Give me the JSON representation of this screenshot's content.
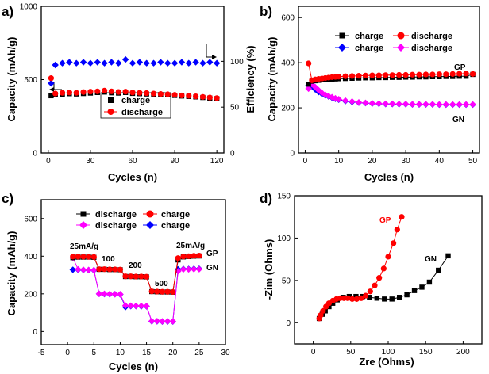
{
  "chart_data": [
    {
      "type": "scatter",
      "panel_label": "a)",
      "xlabel": "Cycles (n)",
      "ylabel": "Capacity (mAh/g)",
      "y2label": "Efficiency (%)",
      "xlim": [
        -5,
        125
      ],
      "ylim": [
        0,
        1000
      ],
      "y2lim": [
        0,
        160
      ],
      "xticks": [
        "0",
        "30",
        "60",
        "90",
        "120"
      ],
      "yticks": [
        "0",
        "500",
        "1000"
      ],
      "y2ticks": [
        "0",
        "50",
        "100"
      ],
      "legend": [
        "charge",
        "discharge"
      ],
      "legend_position": "center-right",
      "series": [
        {
          "name": "charge",
          "axis": "left",
          "color": "#000000",
          "marker": "square",
          "x": [
            2,
            5,
            10,
            15,
            20,
            25,
            30,
            35,
            40,
            45,
            50,
            55,
            60,
            65,
            70,
            75,
            80,
            85,
            90,
            95,
            100,
            105,
            110,
            115,
            120
          ],
          "y": [
            390,
            398,
            400,
            404,
            402,
            405,
            408,
            412,
            415,
            410,
            408,
            412,
            406,
            404,
            402,
            400,
            398,
            396,
            392,
            388,
            385,
            382,
            378,
            374,
            370
          ]
        },
        {
          "name": "discharge",
          "axis": "left",
          "color": "#ff0000",
          "marker": "circle",
          "x": [
            2,
            5,
            10,
            15,
            20,
            25,
            30,
            35,
            40,
            45,
            50,
            55,
            60,
            65,
            70,
            75,
            80,
            85,
            90,
            95,
            100,
            105,
            110,
            115,
            120
          ],
          "y": [
            510,
            405,
            410,
            412,
            410,
            415,
            418,
            420,
            425,
            420,
            416,
            418,
            412,
            410,
            408,
            405,
            402,
            400,
            396,
            392,
            390,
            386,
            382,
            378,
            374
          ]
        },
        {
          "name": "efficiency",
          "axis": "right",
          "color": "#0000ff",
          "marker": "diamond",
          "x": [
            2,
            5,
            10,
            15,
            20,
            25,
            30,
            35,
            40,
            45,
            50,
            55,
            60,
            65,
            70,
            75,
            80,
            85,
            90,
            95,
            100,
            105,
            110,
            115,
            120
          ],
          "y": [
            76,
            96,
            98,
            99,
            98,
            99,
            98,
            99,
            98,
            99,
            98,
            102,
            98,
            99,
            98,
            98,
            99,
            98,
            98,
            99,
            98,
            99,
            98,
            99,
            98
          ]
        }
      ]
    },
    {
      "type": "scatter",
      "panel_label": "b)",
      "xlabel": "Cycles (n)",
      "ylabel": "Capacity (mAh/g)",
      "xlim": [
        -2,
        52
      ],
      "ylim": [
        0,
        650
      ],
      "xticks": [
        "0",
        "10",
        "20",
        "30",
        "40",
        "50"
      ],
      "yticks": [
        "0",
        "200",
        "400",
        "600"
      ],
      "legend": [
        "charge",
        "discharge",
        "charge",
        "discharge"
      ],
      "legend_position": "top",
      "annotations": [
        "GP",
        "GN"
      ],
      "series": [
        {
          "name": "charge",
          "group": "GP",
          "color": "#000000",
          "marker": "square",
          "x": [
            1,
            2,
            3,
            4,
            5,
            6,
            7,
            8,
            9,
            10,
            12,
            14,
            16,
            18,
            20,
            22,
            24,
            26,
            28,
            30,
            32,
            34,
            36,
            38,
            40,
            42,
            44,
            46,
            48,
            50
          ],
          "y": [
            305,
            318,
            320,
            322,
            324,
            325,
            326,
            327,
            328,
            329,
            330,
            331,
            332,
            333,
            333,
            334,
            334,
            335,
            335,
            336,
            336,
            337,
            337,
            338,
            338,
            339,
            339,
            340,
            340,
            348
          ]
        },
        {
          "name": "discharge",
          "group": "GP",
          "color": "#ff0000",
          "marker": "circle",
          "x": [
            1,
            2,
            3,
            4,
            5,
            6,
            7,
            8,
            9,
            10,
            12,
            14,
            16,
            18,
            20,
            22,
            24,
            26,
            28,
            30,
            32,
            34,
            36,
            38,
            40,
            42,
            44,
            46,
            48,
            50
          ],
          "y": [
            397,
            322,
            326,
            328,
            330,
            332,
            334,
            336,
            337,
            338,
            340,
            341,
            342,
            343,
            344,
            344,
            345,
            345,
            346,
            346,
            347,
            347,
            348,
            348,
            349,
            349,
            350,
            351,
            352,
            350
          ]
        },
        {
          "name": "charge",
          "group": "GN",
          "color": "#0000ff",
          "marker": "diamond",
          "x": [
            1,
            2,
            3,
            4,
            5,
            6,
            7,
            8,
            9,
            10,
            12,
            14,
            16,
            18,
            20,
            22,
            24,
            26,
            28,
            30,
            32,
            34,
            36,
            38,
            40,
            42,
            44,
            46,
            48,
            50
          ],
          "y": [
            300,
            296,
            282,
            270,
            262,
            255,
            250,
            245,
            240,
            236,
            230,
            226,
            223,
            221,
            219,
            218,
            217,
            217,
            216,
            216,
            215,
            215,
            215,
            215,
            214,
            214,
            214,
            214,
            214,
            214
          ]
        },
        {
          "name": "discharge",
          "group": "GN",
          "color": "#ff00ff",
          "marker": "diamond",
          "x": [
            1,
            2,
            3,
            4,
            5,
            6,
            7,
            8,
            9,
            10,
            12,
            14,
            16,
            18,
            20,
            22,
            24,
            26,
            28,
            30,
            32,
            34,
            36,
            38,
            40,
            42,
            44,
            46,
            48,
            50
          ],
          "y": [
            285,
            305,
            292,
            278,
            266,
            258,
            252,
            247,
            242,
            238,
            232,
            228,
            224,
            222,
            220,
            219,
            218,
            218,
            217,
            217,
            216,
            216,
            216,
            216,
            215,
            215,
            215,
            215,
            215,
            215
          ]
        }
      ]
    },
    {
      "type": "scatter",
      "panel_label": "c)",
      "xlabel": "Cycles (n)",
      "ylabel": "Capacity (mAh/g)",
      "xlim": [
        -5,
        30
      ],
      "ylim": [
        -70,
        700
      ],
      "xticks": [
        "-5",
        "0",
        "5",
        "10",
        "15",
        "20",
        "25",
        "30"
      ],
      "yticks": [
        "0",
        "200",
        "400",
        "600"
      ],
      "legend": [
        "discharge",
        "charge",
        "discharge",
        "charge"
      ],
      "legend_position": "top",
      "annotations": [
        "25mA/g",
        "100",
        "200",
        "500",
        "25mA/g",
        "GP",
        "GN"
      ],
      "series": [
        {
          "name": "discharge",
          "group": "GP",
          "color": "#000000",
          "marker": "square",
          "x": [
            1,
            2,
            3,
            4,
            5,
            6,
            7,
            8,
            9,
            10,
            11,
            12,
            13,
            14,
            15,
            16,
            17,
            18,
            19,
            20,
            21,
            22,
            23,
            24,
            25
          ],
          "y": [
            392,
            395,
            395,
            395,
            394,
            330,
            330,
            329,
            329,
            328,
            292,
            292,
            291,
            291,
            290,
            212,
            211,
            210,
            210,
            209,
            380,
            396,
            398,
            400,
            401
          ]
        },
        {
          "name": "charge",
          "group": "GP",
          "color": "#ff0000",
          "marker": "circle",
          "x": [
            1,
            2,
            3,
            4,
            5,
            6,
            7,
            8,
            9,
            10,
            11,
            12,
            13,
            14,
            15,
            16,
            17,
            18,
            19,
            20,
            21,
            22,
            23,
            24,
            25
          ],
          "y": [
            398,
            398,
            397,
            397,
            396,
            331,
            331,
            330,
            330,
            329,
            293,
            293,
            292,
            292,
            291,
            213,
            212,
            211,
            211,
            210,
            390,
            398,
            400,
            402,
            403
          ]
        },
        {
          "name": "discharge",
          "group": "GN",
          "color": "#ff00ff",
          "marker": "diamond",
          "x": [
            1,
            2,
            3,
            4,
            5,
            6,
            7,
            8,
            9,
            10,
            11,
            12,
            13,
            14,
            15,
            16,
            17,
            18,
            19,
            20,
            21,
            22,
            23,
            24,
            25
          ],
          "y": [
            392,
            330,
            328,
            327,
            326,
            200,
            200,
            199,
            198,
            198,
            138,
            137,
            136,
            136,
            135,
            55,
            55,
            54,
            54,
            54,
            320,
            330,
            330,
            331,
            331
          ]
        },
        {
          "name": "charge",
          "group": "GN",
          "color": "#0000ff",
          "marker": "diamond",
          "x": [
            1,
            2,
            3,
            4,
            5,
            6,
            7,
            8,
            9,
            10,
            11,
            12,
            13,
            14,
            15,
            16,
            17,
            18,
            19,
            20,
            21,
            22,
            23,
            24,
            25
          ],
          "y": [
            328,
            328,
            327,
            326,
            325,
            200,
            199,
            198,
            198,
            197,
            130,
            135,
            135,
            134,
            134,
            54,
            54,
            53,
            53,
            53,
            330,
            332,
            332,
            333,
            333
          ]
        }
      ]
    },
    {
      "type": "scatter",
      "panel_label": "d)",
      "xlabel": "Zre (Ohms)",
      "ylabel": "-Zim (Ohms)",
      "xlim": [
        -25,
        225
      ],
      "ylim": [
        -25,
        150
      ],
      "xticks": [
        "0",
        "50",
        "100",
        "150",
        "200"
      ],
      "yticks": [
        "0",
        "50",
        "100",
        "150"
      ],
      "annotations": [
        "GP",
        "GN"
      ],
      "series": [
        {
          "name": "GP",
          "color": "#ff0000",
          "marker": "circle",
          "x": [
            8,
            10,
            13,
            17,
            21,
            26,
            31,
            36,
            41,
            46,
            52,
            58,
            64,
            70,
            76,
            82,
            88,
            94,
            100,
            107,
            112,
            118
          ],
          "y": [
            5,
            9,
            14,
            19,
            23,
            26,
            28,
            29,
            29,
            29,
            28,
            28,
            29,
            32,
            37,
            44,
            53,
            64,
            78,
            94,
            110,
            125
          ]
        },
        {
          "name": "GN",
          "color": "#000000",
          "marker": "square",
          "x": [
            8,
            12,
            16,
            21,
            26,
            32,
            40,
            48,
            57,
            66,
            75,
            85,
            95,
            105,
            115,
            125,
            135,
            145,
            155,
            167,
            180
          ],
          "y": [
            5,
            10,
            14,
            19,
            23,
            27,
            30,
            31,
            31,
            31,
            30,
            29,
            28,
            28,
            30,
            33,
            38,
            42,
            48,
            62,
            79
          ]
        }
      ]
    }
  ]
}
